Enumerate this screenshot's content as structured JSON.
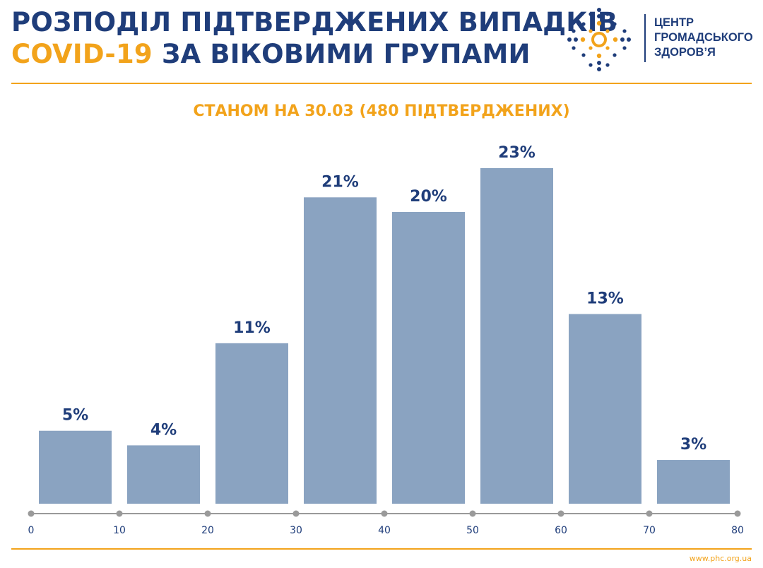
{
  "header": {
    "title_line1": "РОЗПОДІЛ ПІДТВЕРДЖЕНИХ ВИПАДКІВ",
    "title_line2_accent": "COVID-19",
    "title_line2_rest": " ЗА ВІКОВИМИ ГРУПАМИ",
    "org_name": [
      "ЦЕНТР",
      "ГРОМАДСЬКОГО",
      "ЗДОРОВ’Я"
    ]
  },
  "footer": {
    "url": "www.phc.org.ua"
  },
  "colors": {
    "navy": "#1f3d7a",
    "accent": "#f2a31b",
    "bar": "#8aa3c1",
    "axis": "#9a9a9a"
  },
  "chart_data": {
    "type": "bar",
    "subtitle": "СТАНОМ НА 30.03 (480 ПІДТВЕРДЖЕНИХ)",
    "bins": [
      [
        0,
        10
      ],
      [
        10,
        20
      ],
      [
        20,
        30
      ],
      [
        30,
        40
      ],
      [
        40,
        50
      ],
      [
        50,
        60
      ],
      [
        60,
        70
      ],
      [
        70,
        80
      ]
    ],
    "values": [
      5,
      4,
      11,
      21,
      20,
      23,
      13,
      3
    ],
    "value_labels": [
      "5%",
      "4%",
      "11%",
      "21%",
      "20%",
      "23%",
      "13%",
      "3%"
    ],
    "x_ticks": [
      "0",
      "10",
      "20",
      "30",
      "40",
      "50",
      "60",
      "70",
      "80"
    ],
    "xlim": [
      0,
      80
    ],
    "ylim": [
      0,
      23
    ],
    "grid": false,
    "legend": "none"
  }
}
